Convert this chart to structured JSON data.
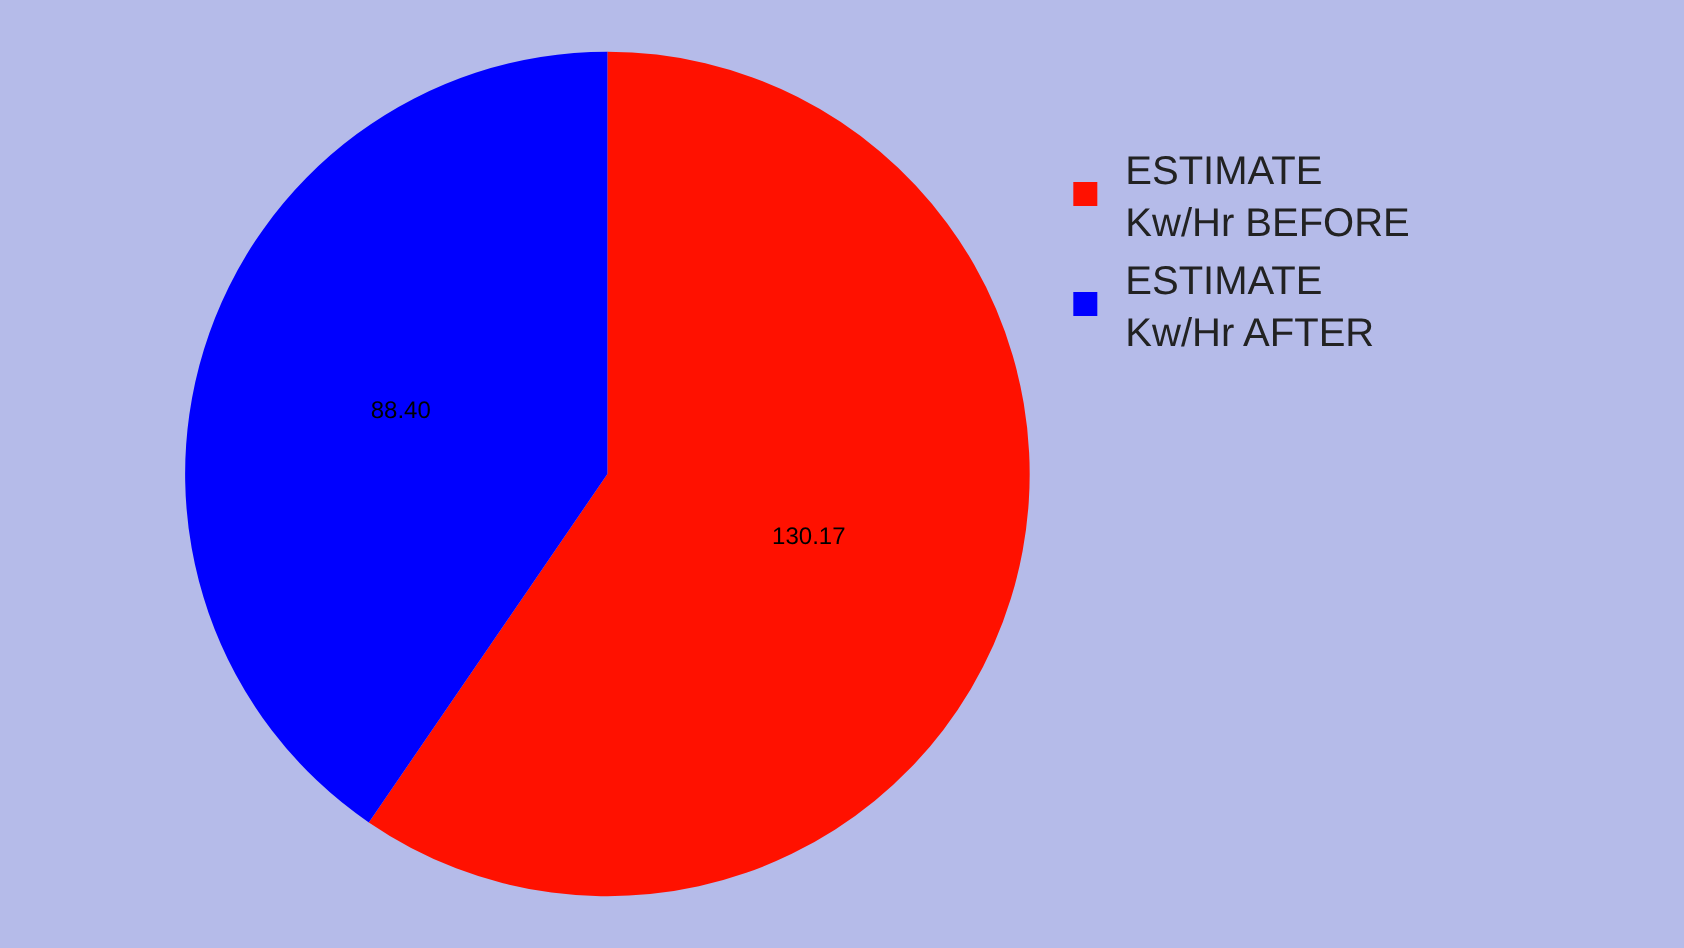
{
  "chart_data": {
    "type": "pie",
    "categories": [
      "ESTIMATE Kw/Hr BEFORE",
      "ESTIMATE Kw/Hr AFTER"
    ],
    "values": [
      130.17,
      88.4
    ],
    "colors": [
      "#ff1100",
      "#0000ff"
    ],
    "value_labels": [
      "130.17",
      "88.40"
    ],
    "legend": "right"
  }
}
